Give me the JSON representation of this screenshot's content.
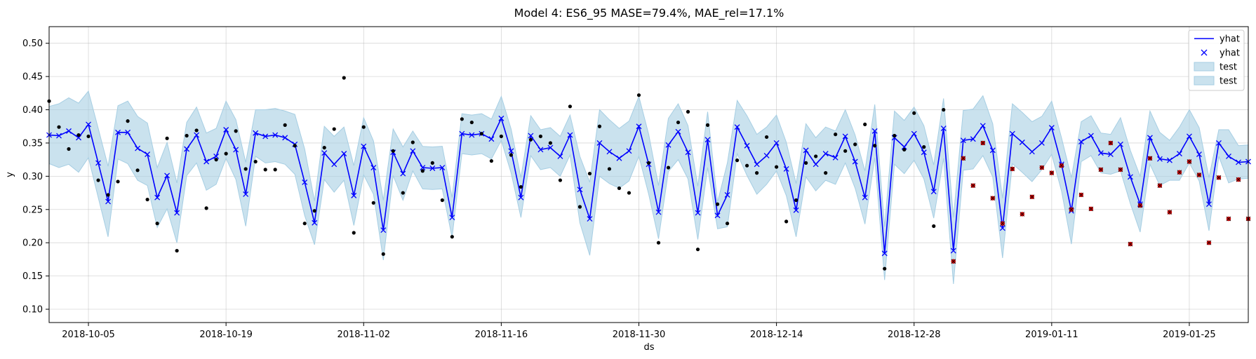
{
  "chart_data": {
    "type": "line",
    "title": "Model 4: ES6_95 MASE=79.4%, MAE_rel=17.1%",
    "xlabel": "ds",
    "ylabel": "y",
    "x_start": "2018-10-01",
    "xlim": [
      "2018-10-01",
      "2019-01-31"
    ],
    "ylim": [
      0.08,
      0.525
    ],
    "grid": true,
    "legend": "top-right",
    "x_ticks": [
      "2018-10-05",
      "2018-10-19",
      "2018-11-02",
      "2018-11-16",
      "2018-11-30",
      "2018-12-14",
      "2018-12-28",
      "2019-01-11",
      "2019-01-25"
    ],
    "y_ticks": [
      0.1,
      0.15,
      0.2,
      0.25,
      0.3,
      0.35,
      0.4,
      0.45,
      0.5
    ],
    "legend_entries": [
      {
        "label": "yhat",
        "kind": "line",
        "color": "#0000ff"
      },
      {
        "label": "yhat",
        "kind": "x-marker",
        "color": "#0000ff"
      },
      {
        "label": "test",
        "kind": "band",
        "color": "#a6cee3"
      },
      {
        "label": "test",
        "kind": "band",
        "color": "#a6cee3"
      }
    ],
    "colors": {
      "forecast": "#0000ff",
      "band": "#a6cee3",
      "train": "#000000",
      "test": "#cc0000"
    },
    "yhat": [
      0.362,
      0.361,
      0.368,
      0.358,
      0.378,
      0.32,
      0.262,
      0.366,
      0.366,
      0.342,
      0.333,
      0.268,
      0.301,
      0.245,
      0.341,
      0.362,
      0.322,
      0.33,
      0.37,
      0.34,
      0.273,
      0.365,
      0.36,
      0.362,
      0.358,
      0.348,
      0.291,
      0.23,
      0.335,
      0.318,
      0.334,
      0.271,
      0.345,
      0.313,
      0.219,
      0.336,
      0.304,
      0.338,
      0.313,
      0.312,
      0.313,
      0.238,
      0.364,
      0.362,
      0.364,
      0.356,
      0.387,
      0.338,
      0.268,
      0.361,
      0.34,
      0.343,
      0.33,
      0.362,
      0.28,
      0.236,
      0.35,
      0.337,
      0.327,
      0.338,
      0.375,
      0.318,
      0.246,
      0.347,
      0.367,
      0.336,
      0.245,
      0.355,
      0.241,
      0.272,
      0.374,
      0.346,
      0.318,
      0.331,
      0.35,
      0.311,
      0.249,
      0.339,
      0.318,
      0.334,
      0.328,
      0.36,
      0.322,
      0.268,
      0.368,
      0.184,
      0.358,
      0.344,
      0.364,
      0.336,
      0.277,
      0.372,
      0.188,
      0.354,
      0.356,
      0.376,
      0.339,
      0.222,
      0.364,
      0.351,
      0.337,
      0.35,
      0.373,
      0.318,
      0.248,
      0.352,
      0.361,
      0.335,
      0.333,
      0.348,
      0.299,
      0.258,
      0.358,
      0.326,
      0.324,
      0.334,
      0.36,
      0.333,
      0.258,
      0.35,
      0.33,
      0.321,
      0.322
    ],
    "band_width": [
      0.043,
      0.048,
      0.05,
      0.052,
      0.05,
      0.052,
      0.053,
      0.04,
      0.047,
      0.048,
      0.047,
      0.045,
      0.05,
      0.045,
      0.04,
      0.042,
      0.043,
      0.042,
      0.043,
      0.045,
      0.048,
      0.035,
      0.04,
      0.04,
      0.04,
      0.045,
      0.05,
      0.033,
      0.04,
      0.042,
      0.04,
      0.045,
      0.043,
      0.04,
      0.045,
      0.035,
      0.04,
      0.03,
      0.032,
      0.032,
      0.032,
      0.03,
      0.03,
      0.03,
      0.03,
      0.03,
      0.033,
      0.033,
      0.03,
      0.03,
      0.03,
      0.03,
      0.03,
      0.03,
      0.05,
      0.055,
      0.05,
      0.048,
      0.045,
      0.045,
      0.045,
      0.045,
      0.04,
      0.04,
      0.042,
      0.04,
      0.04,
      0.042,
      0.02,
      0.048,
      0.04,
      0.045,
      0.045,
      0.043,
      0.042,
      0.04,
      0.04,
      0.04,
      0.04,
      0.04,
      0.04,
      0.04,
      0.04,
      0.04,
      0.04,
      0.04,
      0.04,
      0.04,
      0.04,
      0.04,
      0.04,
      0.045,
      0.05,
      0.045,
      0.045,
      0.045,
      0.04,
      0.045,
      0.045,
      0.045,
      0.045,
      0.04,
      0.04,
      0.04,
      0.05,
      0.03,
      0.03,
      0.03,
      0.03,
      0.04,
      0.04,
      0.042,
      0.04,
      0.04,
      0.03,
      0.04,
      0.04,
      0.04,
      0.04,
      0.02,
      0.04,
      0.025,
      0.025
    ],
    "train_actual": [
      [
        0,
        0.413
      ],
      [
        1,
        0.374
      ],
      [
        2,
        0.341
      ],
      [
        3,
        0.362
      ],
      [
        4,
        0.36
      ],
      [
        5,
        0.294
      ],
      [
        6,
        0.272
      ],
      [
        7,
        0.292
      ],
      [
        8,
        0.383
      ],
      [
        9,
        0.309
      ],
      [
        10,
        0.265
      ],
      [
        11,
        0.229
      ],
      [
        12,
        0.357
      ],
      [
        13,
        0.188
      ],
      [
        14,
        0.361
      ],
      [
        15,
        0.369
      ],
      [
        16,
        0.252
      ],
      [
        17,
        0.325
      ],
      [
        18,
        0.334
      ],
      [
        19,
        0.368
      ],
      [
        20,
        0.311
      ],
      [
        21,
        0.322
      ],
      [
        22,
        0.31
      ],
      [
        23,
        0.31
      ],
      [
        24,
        0.377
      ],
      [
        25,
        0.346
      ],
      [
        26,
        0.229
      ],
      [
        27,
        0.248
      ],
      [
        28,
        0.343
      ],
      [
        29,
        0.371
      ],
      [
        30,
        0.448
      ],
      [
        31,
        0.215
      ],
      [
        32,
        0.374
      ],
      [
        33,
        0.26
      ],
      [
        34,
        0.183
      ],
      [
        35,
        0.338
      ],
      [
        36,
        0.275
      ],
      [
        37,
        0.351
      ],
      [
        38,
        0.308
      ],
      [
        39,
        0.32
      ],
      [
        40,
        0.264
      ],
      [
        41,
        0.209
      ],
      [
        42,
        0.386
      ],
      [
        43,
        0.381
      ],
      [
        44,
        0.364
      ],
      [
        45,
        0.323
      ],
      [
        46,
        0.36
      ],
      [
        47,
        0.332
      ],
      [
        48,
        0.284
      ],
      [
        49,
        0.355
      ],
      [
        50,
        0.36
      ],
      [
        51,
        0.35
      ],
      [
        52,
        0.294
      ],
      [
        53,
        0.405
      ],
      [
        54,
        0.254
      ],
      [
        55,
        0.304
      ],
      [
        56,
        0.375
      ],
      [
        57,
        0.311
      ],
      [
        58,
        0.282
      ],
      [
        59,
        0.275
      ],
      [
        60,
        0.422
      ],
      [
        61,
        0.32
      ],
      [
        62,
        0.2
      ],
      [
        63,
        0.313
      ],
      [
        64,
        0.381
      ],
      [
        65,
        0.397
      ],
      [
        66,
        0.19
      ],
      [
        67,
        0.377
      ],
      [
        68,
        0.258
      ],
      [
        69,
        0.229
      ],
      [
        70,
        0.324
      ],
      [
        71,
        0.316
      ],
      [
        72,
        0.305
      ],
      [
        73,
        0.359
      ],
      [
        74,
        0.314
      ],
      [
        75,
        0.232
      ],
      [
        76,
        0.264
      ],
      [
        77,
        0.32
      ],
      [
        78,
        0.33
      ],
      [
        79,
        0.305
      ],
      [
        80,
        0.363
      ],
      [
        81,
        0.338
      ],
      [
        82,
        0.348
      ],
      [
        83,
        0.378
      ],
      [
        84,
        0.346
      ],
      [
        85,
        0.161
      ],
      [
        86,
        0.361
      ],
      [
        87,
        0.34
      ],
      [
        88,
        0.395
      ],
      [
        89,
        0.344
      ],
      [
        90,
        0.225
      ],
      [
        91,
        0.4
      ]
    ],
    "test_actual": [
      [
        92,
        0.172
      ],
      [
        93,
        0.327
      ],
      [
        94,
        0.286
      ],
      [
        95,
        0.35
      ],
      [
        96,
        0.267
      ],
      [
        97,
        0.229
      ],
      [
        98,
        0.311
      ],
      [
        99,
        0.243
      ],
      [
        100,
        0.269
      ],
      [
        101,
        0.313
      ],
      [
        102,
        0.305
      ],
      [
        103,
        0.316
      ],
      [
        104,
        0.25
      ],
      [
        105,
        0.272
      ],
      [
        106,
        0.251
      ],
      [
        107,
        0.31
      ],
      [
        108,
        0.35
      ],
      [
        109,
        0.31
      ],
      [
        110,
        0.198
      ],
      [
        111,
        0.256
      ],
      [
        112,
        0.327
      ],
      [
        113,
        0.286
      ],
      [
        114,
        0.246
      ],
      [
        115,
        0.306
      ],
      [
        116,
        0.322
      ],
      [
        117,
        0.302
      ],
      [
        118,
        0.2
      ],
      [
        119,
        0.298
      ],
      [
        120,
        0.236
      ],
      [
        121,
        0.295
      ],
      [
        122,
        0.236
      ]
    ]
  }
}
